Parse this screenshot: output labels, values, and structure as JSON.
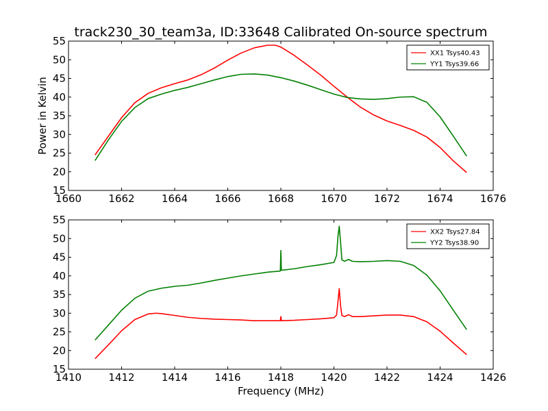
{
  "title": "track230_30_team3a, ID:33648 Calibrated On-source spectrum",
  "chart_data": [
    {
      "type": "line",
      "xlabel": "",
      "ylabel": "Power in Kelvin",
      "xlim": [
        1660,
        1676
      ],
      "ylim": [
        15,
        55
      ],
      "xticks": [
        "1660",
        "1662",
        "1664",
        "1666",
        "1668",
        "1670",
        "1672",
        "1674",
        "1676"
      ],
      "yticks": [
        "15",
        "20",
        "25",
        "30",
        "35",
        "40",
        "45",
        "50",
        "55"
      ],
      "legend_position": "upper-right",
      "grid": false,
      "series": [
        {
          "name": "XX1 Tsys40.43",
          "color": "#ff0000",
          "x": [
            1661.0,
            1661.5,
            1662.0,
            1662.5,
            1663.0,
            1663.5,
            1664.0,
            1664.5,
            1665.0,
            1665.5,
            1666.0,
            1666.5,
            1667.0,
            1667.5,
            1667.8,
            1668.0,
            1668.5,
            1669.0,
            1669.5,
            1670.0,
            1670.5,
            1671.0,
            1671.5,
            1672.0,
            1672.5,
            1673.0,
            1673.5,
            1674.0,
            1674.5,
            1675.0
          ],
          "y": [
            24.5,
            29.5,
            34.5,
            38.5,
            41.0,
            42.5,
            43.6,
            44.6,
            46.0,
            47.8,
            49.9,
            51.8,
            53.2,
            53.9,
            53.9,
            53.4,
            51.2,
            48.6,
            45.9,
            42.9,
            40.0,
            37.3,
            35.2,
            33.6,
            32.4,
            31.1,
            29.3,
            26.5,
            22.9,
            19.8
          ]
        },
        {
          "name": "YY1 Tsys39.66",
          "color": "#008000",
          "x": [
            1661.0,
            1661.5,
            1662.0,
            1662.5,
            1663.0,
            1663.5,
            1664.0,
            1664.5,
            1665.0,
            1665.5,
            1666.0,
            1666.5,
            1667.0,
            1667.5,
            1668.0,
            1668.5,
            1669.0,
            1669.5,
            1670.0,
            1670.5,
            1671.0,
            1671.5,
            1672.0,
            1672.5,
            1673.0,
            1673.5,
            1674.0,
            1674.5,
            1675.0
          ],
          "y": [
            23.0,
            28.5,
            33.5,
            37.2,
            39.6,
            40.8,
            41.8,
            42.6,
            43.6,
            44.6,
            45.5,
            46.1,
            46.2,
            45.9,
            45.2,
            44.3,
            43.2,
            42.0,
            40.8,
            39.9,
            39.5,
            39.4,
            39.6,
            40.0,
            40.1,
            38.6,
            34.7,
            29.5,
            24.2
          ]
        }
      ]
    },
    {
      "type": "line",
      "xlabel": "Frequency (MHz)",
      "ylabel": "",
      "xlim": [
        1410,
        1426
      ],
      "ylim": [
        15,
        55
      ],
      "xticks": [
        "1410",
        "1412",
        "1414",
        "1416",
        "1418",
        "1420",
        "1422",
        "1424",
        "1426"
      ],
      "yticks": [
        "15",
        "20",
        "25",
        "30",
        "35",
        "40",
        "45",
        "50",
        "55"
      ],
      "legend_position": "upper-right",
      "grid": false,
      "series": [
        {
          "name": "XX2 Tsys27.84",
          "color": "#ff0000",
          "x": [
            1411.0,
            1411.5,
            1412.0,
            1412.5,
            1413.0,
            1413.3,
            1413.5,
            1414.0,
            1414.5,
            1415.0,
            1415.5,
            1416.0,
            1416.5,
            1417.0,
            1417.5,
            1417.98,
            1418.0,
            1418.02,
            1418.5,
            1419.0,
            1419.5,
            1420.0,
            1420.1,
            1420.15,
            1420.2,
            1420.25,
            1420.3,
            1420.4,
            1420.55,
            1420.7,
            1421.0,
            1421.5,
            1422.0,
            1422.5,
            1423.0,
            1423.5,
            1424.0,
            1424.5,
            1425.0
          ],
          "y": [
            17.8,
            21.5,
            25.3,
            28.3,
            29.8,
            30.0,
            29.9,
            29.4,
            28.9,
            28.6,
            28.4,
            28.3,
            28.2,
            28.0,
            28.0,
            28.0,
            29.1,
            28.0,
            28.1,
            28.3,
            28.5,
            28.8,
            29.5,
            33.0,
            36.6,
            32.0,
            29.4,
            29.1,
            29.6,
            29.1,
            29.1,
            29.3,
            29.5,
            29.5,
            29.1,
            27.7,
            25.2,
            22.0,
            18.9
          ]
        },
        {
          "name": "YY2 Tsys38.90",
          "color": "#008000",
          "x": [
            1411.0,
            1411.5,
            1412.0,
            1412.5,
            1413.0,
            1413.5,
            1414.0,
            1414.5,
            1415.0,
            1415.5,
            1416.0,
            1416.5,
            1417.0,
            1417.5,
            1417.98,
            1418.0,
            1418.02,
            1418.5,
            1419.0,
            1419.5,
            1420.0,
            1420.1,
            1420.15,
            1420.2,
            1420.25,
            1420.3,
            1420.4,
            1420.55,
            1420.7,
            1421.0,
            1421.5,
            1422.0,
            1422.5,
            1423.0,
            1423.5,
            1424.0,
            1424.5,
            1425.0
          ],
          "y": [
            22.8,
            26.8,
            30.8,
            34.0,
            35.9,
            36.7,
            37.2,
            37.5,
            38.1,
            38.8,
            39.4,
            40.0,
            40.5,
            41.0,
            41.3,
            46.8,
            41.5,
            41.9,
            42.5,
            43.0,
            43.6,
            45.5,
            50.5,
            53.3,
            49.0,
            44.3,
            43.9,
            44.4,
            43.9,
            43.8,
            43.9,
            44.1,
            43.9,
            42.8,
            40.2,
            36.0,
            30.8,
            25.6
          ]
        }
      ]
    }
  ]
}
